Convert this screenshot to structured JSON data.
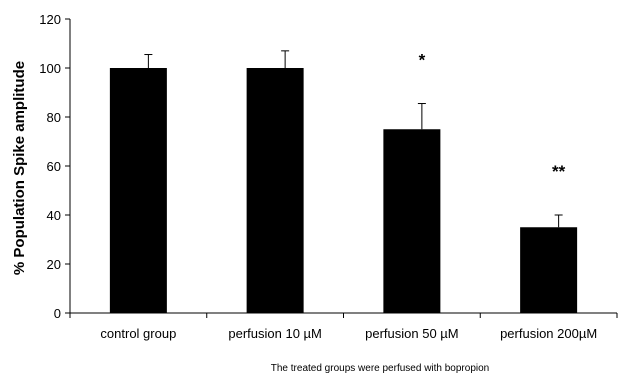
{
  "chart_data": {
    "type": "bar",
    "categories": [
      "control group",
      "perfusion 10 µM",
      "perfusion 50 µM",
      "perfusion 200µM"
    ],
    "values": [
      100,
      100,
      75,
      35
    ],
    "errors": [
      5.5,
      7,
      10.5,
      5
    ],
    "annotations": [
      "",
      "",
      "*",
      "**"
    ],
    "title": "",
    "xlabel": "The treated  groups were perfused with bopropion",
    "ylabel": "% Population Spike amplitude",
    "ylim": [
      0,
      120
    ],
    "yticks": [
      0,
      20,
      40,
      60,
      80,
      100,
      120
    ],
    "grid": false,
    "bar_color": "#000000"
  }
}
